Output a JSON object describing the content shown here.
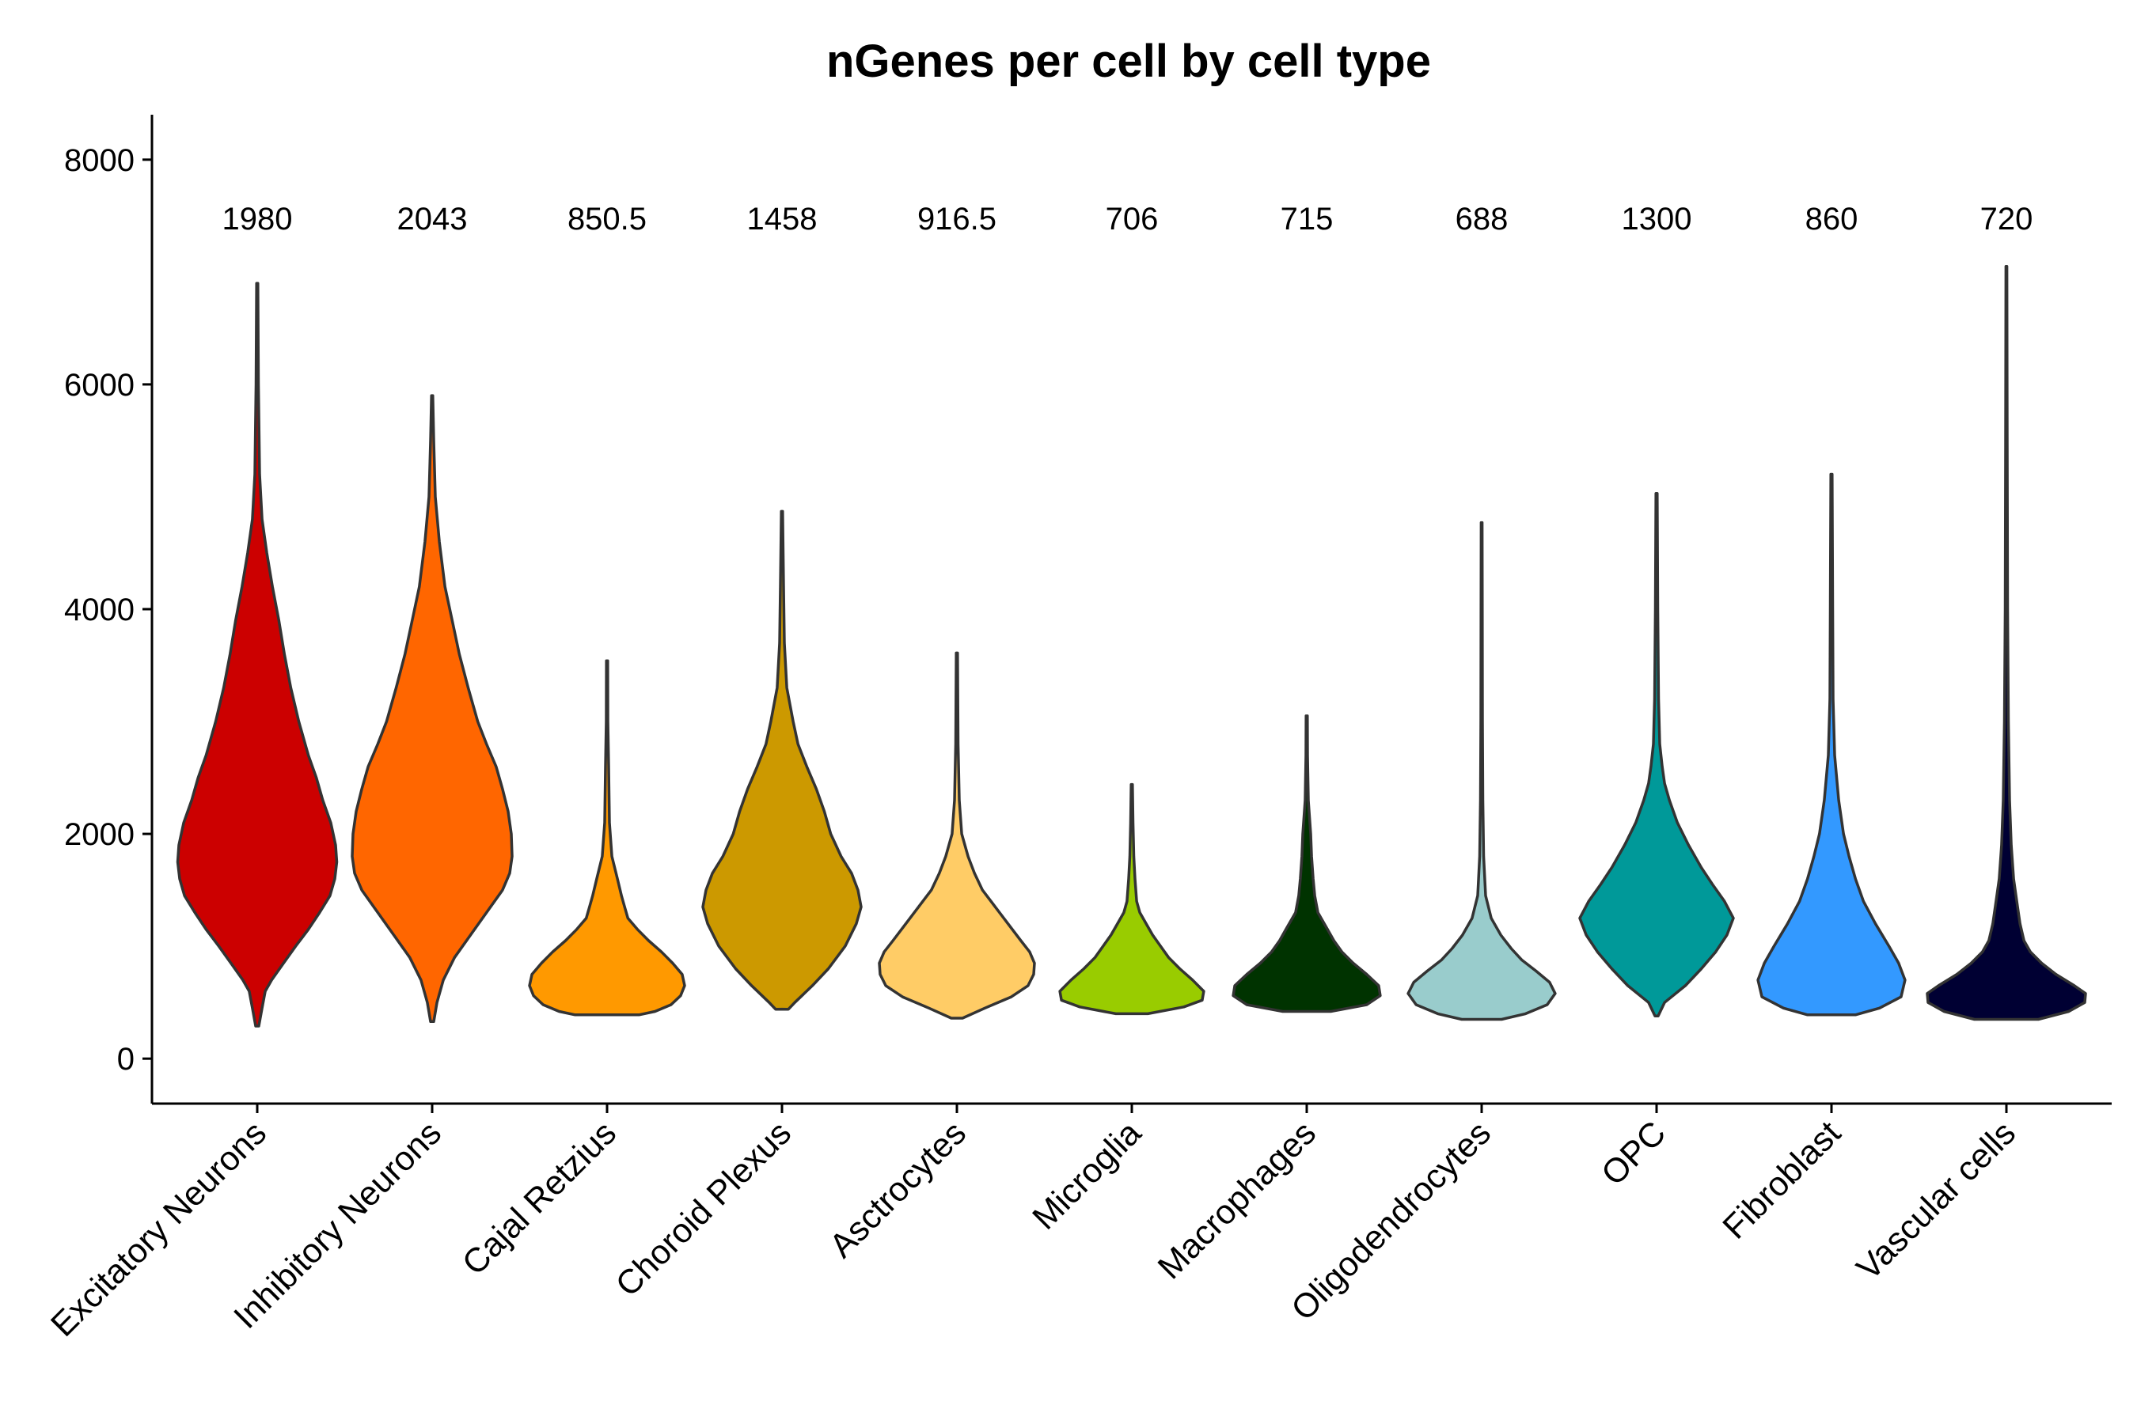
{
  "chart_data": {
    "type": "violin",
    "title": "nGenes per cell by cell type",
    "xlabel": "",
    "ylabel": "",
    "ylim": [
      -400,
      8400
    ],
    "yticks": [
      0,
      2000,
      4000,
      6000,
      8000
    ],
    "grid": false,
    "legend": "none",
    "categories": [
      "Excitatory Neurons",
      "Inhibitory Neurons",
      "Cajal Retzius",
      "Choroid Plexus",
      "Asctrocytes",
      "Microglia",
      "Macrophages",
      "Oligodendrocytes",
      "OPC",
      "Fibroblast",
      "Vascular cells"
    ],
    "median_labels": [
      "1980",
      "2043",
      "850.5",
      "1458",
      "916.5",
      "706",
      "715",
      "688",
      "1300",
      "860",
      "720"
    ],
    "medians": [
      1980,
      2043,
      850.5,
      1458,
      916.5,
      706,
      715,
      688,
      1300,
      860,
      720
    ],
    "colors": [
      "#CC0000",
      "#FF6600",
      "#FF9900",
      "#CC9900",
      "#FFCC66",
      "#99CC00",
      "#003300",
      "#99CCCC",
      "#009999",
      "#3399FF",
      "#000033"
    ],
    "violins": [
      {
        "name": "Excitatory Neurons",
        "min": 290,
        "max": 6900,
        "profile": [
          [
            290,
            0.02
          ],
          [
            450,
            0.06
          ],
          [
            600,
            0.1
          ],
          [
            700,
            0.18
          ],
          [
            850,
            0.33
          ],
          [
            1000,
            0.48
          ],
          [
            1150,
            0.64
          ],
          [
            1300,
            0.78
          ],
          [
            1450,
            0.91
          ],
          [
            1600,
            0.97
          ],
          [
            1750,
            0.995
          ],
          [
            1900,
            0.98
          ],
          [
            2100,
            0.92
          ],
          [
            2300,
            0.82
          ],
          [
            2500,
            0.74
          ],
          [
            2700,
            0.64
          ],
          [
            3000,
            0.52
          ],
          [
            3300,
            0.42
          ],
          [
            3600,
            0.34
          ],
          [
            3900,
            0.27
          ],
          [
            4200,
            0.19
          ],
          [
            4500,
            0.12
          ],
          [
            4800,
            0.06
          ],
          [
            5200,
            0.03
          ],
          [
            6000,
            0.015
          ],
          [
            6900,
            0.008
          ]
        ]
      },
      {
        "name": "Inhibitory Neurons",
        "min": 330,
        "max": 5900,
        "profile": [
          [
            330,
            0.02
          ],
          [
            500,
            0.06
          ],
          [
            700,
            0.14
          ],
          [
            900,
            0.28
          ],
          [
            1100,
            0.48
          ],
          [
            1300,
            0.68
          ],
          [
            1500,
            0.88
          ],
          [
            1650,
            0.97
          ],
          [
            1800,
            1.0
          ],
          [
            2000,
            0.99
          ],
          [
            2200,
            0.95
          ],
          [
            2400,
            0.88
          ],
          [
            2600,
            0.8
          ],
          [
            2800,
            0.68
          ],
          [
            3000,
            0.57
          ],
          [
            3300,
            0.45
          ],
          [
            3600,
            0.34
          ],
          [
            3900,
            0.25
          ],
          [
            4200,
            0.16
          ],
          [
            4600,
            0.09
          ],
          [
            5000,
            0.04
          ],
          [
            5500,
            0.02
          ],
          [
            5900,
            0.008
          ]
        ]
      },
      {
        "name": "Cajal Retzius",
        "min": 390,
        "max": 3540,
        "profile": [
          [
            390,
            0.4
          ],
          [
            420,
            0.6
          ],
          [
            480,
            0.8
          ],
          [
            560,
            0.92
          ],
          [
            650,
            0.97
          ],
          [
            750,
            0.94
          ],
          [
            850,
            0.82
          ],
          [
            950,
            0.68
          ],
          [
            1050,
            0.52
          ],
          [
            1150,
            0.38
          ],
          [
            1250,
            0.26
          ],
          [
            1350,
            0.22
          ],
          [
            1450,
            0.18
          ],
          [
            1600,
            0.13
          ],
          [
            1800,
            0.06
          ],
          [
            2100,
            0.03
          ],
          [
            2600,
            0.02
          ],
          [
            3000,
            0.01
          ],
          [
            3540,
            0.008
          ]
        ]
      },
      {
        "name": "Choroid Plexus",
        "min": 440,
        "max": 4870,
        "profile": [
          [
            440,
            0.08
          ],
          [
            500,
            0.16
          ],
          [
            650,
            0.38
          ],
          [
            800,
            0.58
          ],
          [
            1000,
            0.79
          ],
          [
            1200,
            0.93
          ],
          [
            1350,
            0.99
          ],
          [
            1500,
            0.95
          ],
          [
            1650,
            0.87
          ],
          [
            1800,
            0.74
          ],
          [
            2000,
            0.61
          ],
          [
            2200,
            0.53
          ],
          [
            2400,
            0.43
          ],
          [
            2600,
            0.31
          ],
          [
            2800,
            0.2
          ],
          [
            3000,
            0.14
          ],
          [
            3300,
            0.06
          ],
          [
            3700,
            0.03
          ],
          [
            4200,
            0.02
          ],
          [
            4870,
            0.008
          ]
        ]
      },
      {
        "name": "Asctrocytes",
        "min": 360,
        "max": 3610,
        "profile": [
          [
            360,
            0.07
          ],
          [
            450,
            0.35
          ],
          [
            550,
            0.68
          ],
          [
            650,
            0.89
          ],
          [
            750,
            0.96
          ],
          [
            850,
            0.97
          ],
          [
            950,
            0.91
          ],
          [
            1050,
            0.8
          ],
          [
            1200,
            0.64
          ],
          [
            1350,
            0.48
          ],
          [
            1500,
            0.32
          ],
          [
            1650,
            0.22
          ],
          [
            1800,
            0.14
          ],
          [
            2000,
            0.06
          ],
          [
            2300,
            0.03
          ],
          [
            2800,
            0.015
          ],
          [
            3610,
            0.008
          ]
        ]
      },
      {
        "name": "Microglia",
        "min": 400,
        "max": 2440,
        "profile": [
          [
            400,
            0.2
          ],
          [
            460,
            0.65
          ],
          [
            520,
            0.88
          ],
          [
            600,
            0.9
          ],
          [
            700,
            0.76
          ],
          [
            800,
            0.6
          ],
          [
            900,
            0.46
          ],
          [
            1000,
            0.36
          ],
          [
            1100,
            0.26
          ],
          [
            1200,
            0.18
          ],
          [
            1300,
            0.1
          ],
          [
            1400,
            0.06
          ],
          [
            1600,
            0.04
          ],
          [
            1800,
            0.025
          ],
          [
            2100,
            0.015
          ],
          [
            2440,
            0.008
          ]
        ]
      },
      {
        "name": "Macrophages",
        "min": 420,
        "max": 3050,
        "profile": [
          [
            420,
            0.3
          ],
          [
            480,
            0.75
          ],
          [
            560,
            0.92
          ],
          [
            650,
            0.9
          ],
          [
            750,
            0.75
          ],
          [
            850,
            0.58
          ],
          [
            950,
            0.44
          ],
          [
            1050,
            0.34
          ],
          [
            1150,
            0.26
          ],
          [
            1300,
            0.14
          ],
          [
            1450,
            0.1
          ],
          [
            1600,
            0.08
          ],
          [
            1800,
            0.06
          ],
          [
            2000,
            0.05
          ],
          [
            2300,
            0.02
          ],
          [
            2700,
            0.01
          ],
          [
            3050,
            0.008
          ]
        ]
      },
      {
        "name": "Oligodendrocytes",
        "min": 350,
        "max": 4770,
        "profile": [
          [
            350,
            0.25
          ],
          [
            400,
            0.55
          ],
          [
            480,
            0.82
          ],
          [
            580,
            0.92
          ],
          [
            680,
            0.85
          ],
          [
            780,
            0.68
          ],
          [
            880,
            0.5
          ],
          [
            980,
            0.37
          ],
          [
            1100,
            0.24
          ],
          [
            1250,
            0.12
          ],
          [
            1450,
            0.05
          ],
          [
            1800,
            0.025
          ],
          [
            2300,
            0.015
          ],
          [
            3000,
            0.01
          ],
          [
            4000,
            0.008
          ],
          [
            4770,
            0.006
          ]
        ]
      },
      {
        "name": "OPC",
        "min": 380,
        "max": 5030,
        "profile": [
          [
            380,
            0.02
          ],
          [
            500,
            0.1
          ],
          [
            650,
            0.36
          ],
          [
            800,
            0.56
          ],
          [
            950,
            0.74
          ],
          [
            1100,
            0.88
          ],
          [
            1250,
            0.96
          ],
          [
            1400,
            0.85
          ],
          [
            1550,
            0.7
          ],
          [
            1700,
            0.56
          ],
          [
            1900,
            0.4
          ],
          [
            2100,
            0.26
          ],
          [
            2300,
            0.16
          ],
          [
            2450,
            0.1
          ],
          [
            2600,
            0.07
          ],
          [
            2800,
            0.04
          ],
          [
            3200,
            0.025
          ],
          [
            4000,
            0.015
          ],
          [
            5030,
            0.008
          ]
        ]
      },
      {
        "name": "Fibroblast",
        "min": 390,
        "max": 5200,
        "profile": [
          [
            390,
            0.3
          ],
          [
            450,
            0.6
          ],
          [
            550,
            0.87
          ],
          [
            700,
            0.92
          ],
          [
            850,
            0.84
          ],
          [
            1000,
            0.72
          ],
          [
            1200,
            0.55
          ],
          [
            1400,
            0.4
          ],
          [
            1600,
            0.3
          ],
          [
            1800,
            0.22
          ],
          [
            2000,
            0.15
          ],
          [
            2300,
            0.09
          ],
          [
            2700,
            0.04
          ],
          [
            3200,
            0.02
          ],
          [
            4000,
            0.015
          ],
          [
            5200,
            0.008
          ]
        ]
      },
      {
        "name": "Vascular cells",
        "min": 350,
        "max": 7050,
        "profile": [
          [
            350,
            0.4
          ],
          [
            420,
            0.78
          ],
          [
            500,
            0.98
          ],
          [
            580,
            0.99
          ],
          [
            650,
            0.85
          ],
          [
            750,
            0.62
          ],
          [
            850,
            0.44
          ],
          [
            950,
            0.3
          ],
          [
            1050,
            0.22
          ],
          [
            1200,
            0.17
          ],
          [
            1400,
            0.13
          ],
          [
            1600,
            0.09
          ],
          [
            1900,
            0.06
          ],
          [
            2300,
            0.04
          ],
          [
            3000,
            0.025
          ],
          [
            4000,
            0.015
          ],
          [
            5500,
            0.01
          ],
          [
            7050,
            0.006
          ]
        ]
      }
    ]
  }
}
